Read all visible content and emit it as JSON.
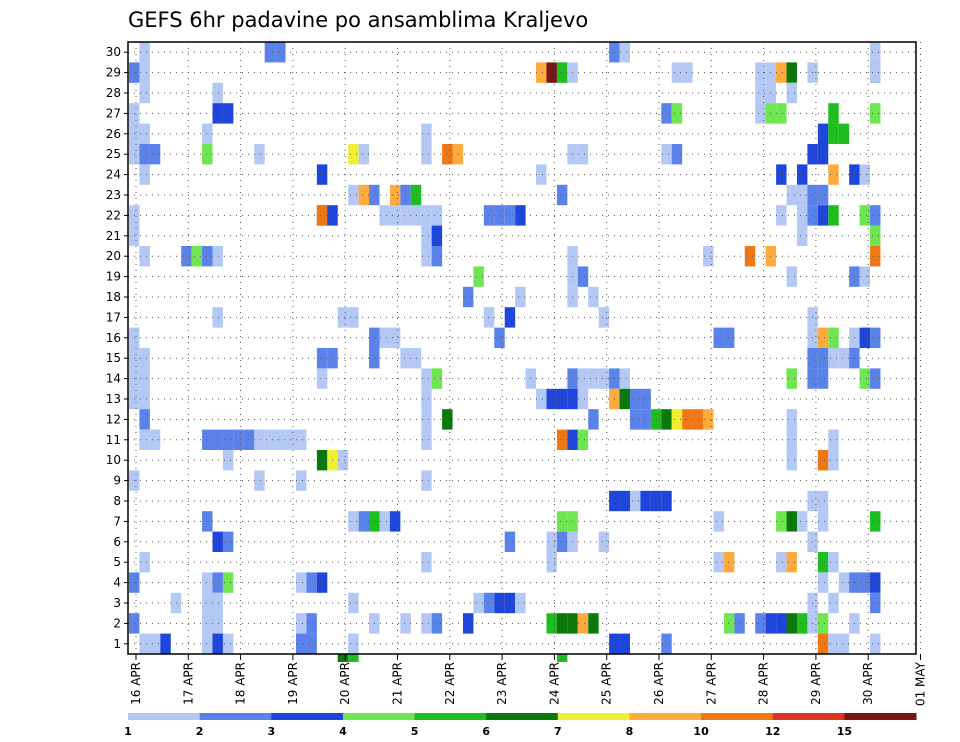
{
  "chart_data": {
    "type": "heatmap",
    "title": "GEFS 6hr padavine po ansamblima Kraljevo",
    "xlabel": "",
    "ylabel": "",
    "x_tick_labels": [
      "16 APR",
      "17 APR",
      "18 APR",
      "19 APR",
      "20 APR",
      "21 APR",
      "22 APR",
      "23 APR",
      "24 APR",
      "25 APR",
      "26 APR",
      "27 APR",
      "28 APR",
      "29 APR",
      "30 APR",
      "01 MAY"
    ],
    "y_tick_labels": [
      "1",
      "2",
      "3",
      "4",
      "5",
      "6",
      "7",
      "8",
      "9",
      "10",
      "11",
      "12",
      "13",
      "14",
      "15",
      "16",
      "17",
      "18",
      "19",
      "20",
      "21",
      "22",
      "23",
      "24",
      "25",
      "26",
      "27",
      "28",
      "29",
      "30"
    ],
    "ylim": [
      0,
      30
    ],
    "steps_per_day": 4,
    "grid": true,
    "legend_position": "bottom",
    "colorbar": {
      "bounds": [
        1,
        2,
        3,
        4,
        5,
        6,
        7,
        8,
        10,
        12,
        15,
        20
      ],
      "colors": [
        "#b4c8f5",
        "#5a82eb",
        "#1e46dc",
        "#6ee650",
        "#1ebe1e",
        "#0a780a",
        "#f0f032",
        "#ffaa3c",
        "#f07814",
        "#dc321e",
        "#781414"
      ]
    },
    "cells": [
      [
        1,
        29,
        2
      ],
      [
        1,
        27,
        1
      ],
      [
        1,
        22,
        1
      ],
      [
        1,
        21,
        1
      ],
      [
        1,
        15,
        1
      ],
      [
        1,
        14,
        1
      ],
      [
        1,
        9,
        1
      ],
      [
        1,
        4,
        2
      ],
      [
        1,
        2,
        2
      ],
      [
        1,
        16,
        1
      ],
      [
        1,
        13,
        1
      ],
      [
        1,
        26,
        1
      ],
      [
        1,
        25,
        1
      ],
      [
        2,
        30,
        1
      ],
      [
        2,
        29,
        1
      ],
      [
        2,
        28,
        1
      ],
      [
        2,
        26,
        1
      ],
      [
        2,
        25,
        2
      ],
      [
        2,
        24,
        1
      ],
      [
        2,
        20,
        1
      ],
      [
        2,
        15,
        1
      ],
      [
        2,
        14,
        1
      ],
      [
        2,
        13,
        1
      ],
      [
        2,
        12,
        2
      ],
      [
        2,
        11,
        1
      ],
      [
        2,
        5,
        1
      ],
      [
        2,
        1,
        1
      ],
      [
        3,
        25,
        2
      ],
      [
        3,
        11,
        1
      ],
      [
        3,
        1,
        1
      ],
      [
        4,
        1,
        3
      ],
      [
        5,
        3,
        1
      ],
      [
        6,
        20,
        2
      ],
      [
        7,
        20,
        4
      ],
      [
        8,
        20,
        2
      ],
      [
        8,
        1,
        1
      ],
      [
        8,
        26,
        1
      ],
      [
        8,
        25,
        4
      ],
      [
        8,
        7,
        2
      ],
      [
        8,
        4,
        1
      ],
      [
        8,
        3,
        1
      ],
      [
        8,
        2,
        1
      ],
      [
        8,
        11,
        2
      ],
      [
        9,
        28,
        1
      ],
      [
        9,
        27,
        3
      ],
      [
        9,
        20,
        1
      ],
      [
        9,
        17,
        1
      ],
      [
        9,
        11,
        2
      ],
      [
        9,
        6,
        3
      ],
      [
        9,
        4,
        2
      ],
      [
        9,
        3,
        1
      ],
      [
        9,
        2,
        1
      ],
      [
        9,
        1,
        3
      ],
      [
        10,
        27,
        3
      ],
      [
        10,
        11,
        2
      ],
      [
        10,
        10,
        1
      ],
      [
        10,
        6,
        2
      ],
      [
        10,
        4,
        4
      ],
      [
        10,
        1,
        1
      ],
      [
        11,
        11,
        2
      ],
      [
        12,
        11,
        2
      ],
      [
        13,
        25,
        1
      ],
      [
        13,
        11,
        1
      ],
      [
        13,
        9,
        1
      ],
      [
        14,
        11,
        1
      ],
      [
        14,
        30,
        2
      ],
      [
        15,
        30,
        2
      ],
      [
        15,
        11,
        1
      ],
      [
        16,
        11,
        1
      ],
      [
        17,
        11,
        1
      ],
      [
        17,
        9,
        1
      ],
      [
        17,
        4,
        1
      ],
      [
        17,
        2,
        1
      ],
      [
        17,
        1,
        2
      ],
      [
        18,
        4,
        2
      ],
      [
        18,
        2,
        2
      ],
      [
        18,
        1,
        2
      ],
      [
        19,
        24,
        3
      ],
      [
        19,
        22,
        3
      ],
      [
        19,
        15,
        2
      ],
      [
        19,
        14,
        1
      ],
      [
        19,
        10,
        6
      ],
      [
        19,
        4,
        3
      ],
      [
        19,
        22,
        9
      ],
      [
        20,
        22,
        3
      ],
      [
        20,
        15,
        2
      ],
      [
        20,
        10,
        7
      ],
      [
        21,
        17,
        1
      ],
      [
        21,
        10,
        1
      ],
      [
        21,
        0,
        6
      ],
      [
        22,
        25,
        7
      ],
      [
        22,
        23,
        1
      ],
      [
        22,
        17,
        1
      ],
      [
        22,
        7,
        1
      ],
      [
        22,
        0,
        5
      ],
      [
        22,
        3,
        1
      ],
      [
        22,
        1,
        1
      ],
      [
        23,
        25,
        1
      ],
      [
        23,
        23,
        8
      ],
      [
        23,
        7,
        2
      ],
      [
        24,
        23,
        2
      ],
      [
        24,
        16,
        2
      ],
      [
        24,
        15,
        2
      ],
      [
        24,
        7,
        5
      ],
      [
        24,
        2,
        1
      ],
      [
        25,
        22,
        1
      ],
      [
        25,
        16,
        1
      ],
      [
        25,
        7,
        1
      ],
      [
        26,
        23,
        8
      ],
      [
        26,
        22,
        1
      ],
      [
        26,
        16,
        1
      ],
      [
        26,
        7,
        3
      ],
      [
        27,
        22,
        1
      ],
      [
        27,
        23,
        2
      ],
      [
        27,
        15,
        1
      ],
      [
        27,
        2,
        1
      ],
      [
        28,
        22,
        1
      ],
      [
        28,
        23,
        5
      ],
      [
        28,
        15,
        1
      ],
      [
        29,
        26,
        1
      ],
      [
        29,
        25,
        1
      ],
      [
        29,
        22,
        1
      ],
      [
        29,
        21,
        1
      ],
      [
        29,
        20,
        1
      ],
      [
        29,
        14,
        1
      ],
      [
        29,
        13,
        1
      ],
      [
        29,
        12,
        1
      ],
      [
        29,
        11,
        1
      ],
      [
        29,
        9,
        1
      ],
      [
        29,
        5,
        1
      ],
      [
        29,
        2,
        1
      ],
      [
        30,
        22,
        1
      ],
      [
        30,
        20,
        2
      ],
      [
        30,
        14,
        4
      ],
      [
        30,
        21,
        3
      ],
      [
        30,
        2,
        2
      ],
      [
        31,
        25,
        9
      ],
      [
        31,
        12,
        6
      ],
      [
        32,
        25,
        8
      ],
      [
        33,
        18,
        2
      ],
      [
        33,
        2,
        3
      ],
      [
        34,
        19,
        4
      ],
      [
        34,
        3,
        1
      ],
      [
        35,
        22,
        2
      ],
      [
        35,
        3,
        2
      ],
      [
        35,
        17,
        1
      ],
      [
        36,
        22,
        2
      ],
      [
        36,
        16,
        2
      ],
      [
        36,
        3,
        3
      ],
      [
        37,
        22,
        2
      ],
      [
        37,
        3,
        3
      ],
      [
        37,
        6,
        2
      ],
      [
        37,
        17,
        3
      ],
      [
        38,
        18,
        1
      ],
      [
        38,
        22,
        3
      ],
      [
        38,
        3,
        1
      ],
      [
        39,
        14,
        1
      ],
      [
        40,
        29,
        8
      ],
      [
        40,
        24,
        1
      ],
      [
        40,
        13,
        1
      ],
      [
        41,
        29,
        11
      ],
      [
        41,
        13,
        3
      ],
      [
        41,
        2,
        5
      ],
      [
        41,
        6,
        1
      ],
      [
        41,
        5,
        1
      ],
      [
        42,
        29,
        5
      ],
      [
        42,
        23,
        2
      ],
      [
        42,
        13,
        3
      ],
      [
        42,
        6,
        2
      ],
      [
        42,
        7,
        4
      ],
      [
        42,
        2,
        6
      ],
      [
        42,
        0,
        5
      ],
      [
        42,
        11,
        9
      ],
      [
        43,
        29,
        1
      ],
      [
        43,
        25,
        1
      ],
      [
        43,
        20,
        1
      ],
      [
        43,
        19,
        1
      ],
      [
        43,
        18,
        1
      ],
      [
        43,
        14,
        2
      ],
      [
        43,
        13,
        3
      ],
      [
        43,
        11,
        3
      ],
      [
        43,
        7,
        4
      ],
      [
        43,
        6,
        1
      ],
      [
        43,
        2,
        6
      ],
      [
        44,
        25,
        1
      ],
      [
        44,
        19,
        2
      ],
      [
        44,
        14,
        1
      ],
      [
        44,
        13,
        1
      ],
      [
        44,
        11,
        4
      ],
      [
        44,
        2,
        8
      ],
      [
        45,
        18,
        1
      ],
      [
        45,
        14,
        1
      ],
      [
        45,
        12,
        2
      ],
      [
        45,
        2,
        6
      ],
      [
        46,
        17,
        1
      ],
      [
        46,
        14,
        1
      ],
      [
        46,
        6,
        1
      ],
      [
        47,
        30,
        2
      ],
      [
        47,
        14,
        2
      ],
      [
        47,
        13,
        8
      ],
      [
        47,
        8,
        3
      ],
      [
        47,
        1,
        3
      ],
      [
        48,
        30,
        1
      ],
      [
        48,
        14,
        1
      ],
      [
        48,
        13,
        6
      ],
      [
        48,
        8,
        3
      ],
      [
        48,
        1,
        3
      ],
      [
        49,
        13,
        2
      ],
      [
        49,
        8,
        1
      ],
      [
        49,
        12,
        2
      ],
      [
        50,
        13,
        2
      ],
      [
        50,
        12,
        2
      ],
      [
        50,
        8,
        3
      ],
      [
        51,
        12,
        5
      ],
      [
        51,
        8,
        3
      ],
      [
        52,
        27,
        2
      ],
      [
        52,
        25,
        1
      ],
      [
        52,
        12,
        6
      ],
      [
        52,
        8,
        3
      ],
      [
        52,
        1,
        2
      ],
      [
        53,
        25,
        2
      ],
      [
        53,
        29,
        1
      ],
      [
        53,
        27,
        4
      ],
      [
        53,
        12,
        7
      ],
      [
        54,
        29,
        1
      ],
      [
        54,
        12,
        9
      ],
      [
        55,
        12,
        9
      ],
      [
        56,
        20,
        1
      ],
      [
        56,
        12,
        8
      ],
      [
        57,
        16,
        2
      ],
      [
        57,
        7,
        1
      ],
      [
        57,
        5,
        1
      ],
      [
        58,
        16,
        2
      ],
      [
        58,
        5,
        8
      ],
      [
        58,
        2,
        4
      ],
      [
        59,
        2,
        2
      ],
      [
        60,
        20,
        9
      ],
      [
        61,
        29,
        1
      ],
      [
        61,
        28,
        1
      ],
      [
        61,
        27,
        1
      ],
      [
        61,
        2,
        2
      ],
      [
        62,
        29,
        1
      ],
      [
        62,
        28,
        1
      ],
      [
        62,
        27,
        4
      ],
      [
        62,
        20,
        8
      ],
      [
        62,
        2,
        3
      ],
      [
        63,
        29,
        8
      ],
      [
        63,
        27,
        4
      ],
      [
        63,
        24,
        3
      ],
      [
        63,
        22,
        1
      ],
      [
        63,
        7,
        4
      ],
      [
        63,
        5,
        1
      ],
      [
        63,
        2,
        3
      ],
      [
        64,
        29,
        6
      ],
      [
        64,
        28,
        1
      ],
      [
        64,
        23,
        1
      ],
      [
        64,
        19,
        1
      ],
      [
        64,
        14,
        4
      ],
      [
        64,
        11,
        1
      ],
      [
        64,
        10,
        1
      ],
      [
        64,
        7,
        6
      ],
      [
        64,
        5,
        8
      ],
      [
        64,
        2,
        6
      ],
      [
        64,
        12,
        1
      ],
      [
        65,
        24,
        3
      ],
      [
        65,
        23,
        1
      ],
      [
        65,
        22,
        1
      ],
      [
        65,
        21,
        1
      ],
      [
        65,
        7,
        1
      ],
      [
        65,
        2,
        5
      ],
      [
        66,
        29,
        1
      ],
      [
        66,
        25,
        3
      ],
      [
        66,
        23,
        2
      ],
      [
        66,
        22,
        2
      ],
      [
        66,
        17,
        1
      ],
      [
        66,
        16,
        1
      ],
      [
        66,
        15,
        2
      ],
      [
        66,
        14,
        2
      ],
      [
        66,
        8,
        1
      ],
      [
        66,
        6,
        1
      ],
      [
        66,
        3,
        1
      ],
      [
        66,
        2,
        1
      ],
      [
        67,
        26,
        3
      ],
      [
        67,
        25,
        3
      ],
      [
        67,
        23,
        2
      ],
      [
        67,
        22,
        3
      ],
      [
        67,
        16,
        8
      ],
      [
        67,
        15,
        2
      ],
      [
        67,
        14,
        2
      ],
      [
        67,
        10,
        9
      ],
      [
        67,
        8,
        1
      ],
      [
        67,
        7,
        1
      ],
      [
        67,
        5,
        5
      ],
      [
        67,
        2,
        4
      ],
      [
        67,
        1,
        9
      ],
      [
        67,
        4,
        1
      ],
      [
        68,
        27,
        5
      ],
      [
        68,
        26,
        5
      ],
      [
        68,
        24,
        8
      ],
      [
        68,
        22,
        5
      ],
      [
        68,
        16,
        4
      ],
      [
        68,
        15,
        1
      ],
      [
        68,
        11,
        1
      ],
      [
        68,
        10,
        1
      ],
      [
        68,
        5,
        1
      ],
      [
        68,
        1,
        1
      ],
      [
        68,
        3,
        1
      ],
      [
        69,
        26,
        5
      ],
      [
        69,
        15,
        1
      ],
      [
        69,
        1,
        1
      ],
      [
        69,
        4,
        1
      ],
      [
        70,
        24,
        3
      ],
      [
        70,
        19,
        2
      ],
      [
        70,
        16,
        1
      ],
      [
        70,
        15,
        2
      ],
      [
        70,
        4,
        2
      ],
      [
        70,
        2,
        1
      ],
      [
        71,
        24,
        1
      ],
      [
        71,
        22,
        4
      ],
      [
        71,
        19,
        1
      ],
      [
        71,
        16,
        3
      ],
      [
        71,
        14,
        4
      ],
      [
        71,
        4,
        2
      ],
      [
        72,
        30,
        1
      ],
      [
        72,
        29,
        6
      ],
      [
        72,
        27,
        4
      ],
      [
        72,
        22,
        2
      ],
      [
        72,
        21,
        4
      ],
      [
        72,
        20,
        9
      ],
      [
        72,
        16,
        2
      ],
      [
        72,
        14,
        2
      ],
      [
        72,
        7,
        5
      ],
      [
        72,
        4,
        3
      ],
      [
        72,
        29,
        1
      ],
      [
        72,
        1,
        1
      ],
      [
        72,
        3,
        2
      ]
    ]
  }
}
